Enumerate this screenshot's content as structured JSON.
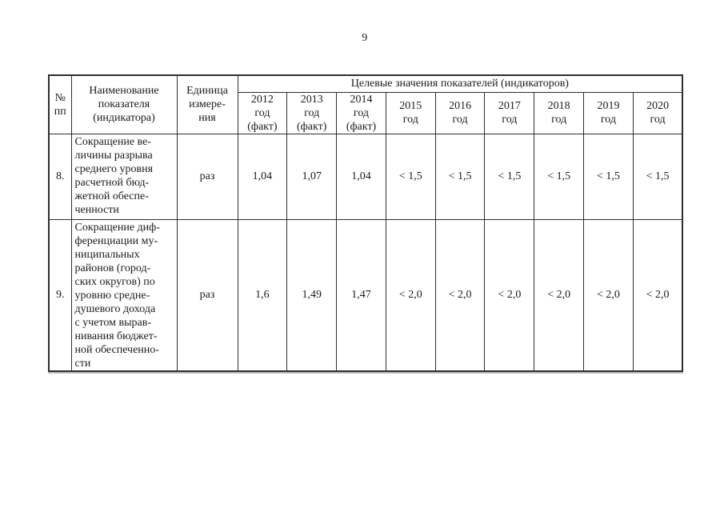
{
  "page": {
    "number": "9"
  },
  "colors": {
    "text": "#1b1b1b",
    "border": "#2e2e2e",
    "background": "#ffffff"
  },
  "table": {
    "header": {
      "col_no": "№\nпп",
      "col_name": "Наименование\nпоказателя\n(индикатора)",
      "col_unit": "Единица\nизмере-\nния",
      "span_title": "Целевые значения показателей (индикаторов)",
      "years": [
        "2012\nгод\n(факт)",
        "2013\nгод\n(факт)",
        "2014\nгод\n(факт)",
        "2015\nгод",
        "2016\nгод",
        "2017\nгод",
        "2018\nгод",
        "2019\nгод",
        "2020\nгод"
      ]
    },
    "rows": [
      {
        "no": "8.",
        "name": "Сокращение ве-\nличины разрыва\nсреднего уровня\nрасчетной бюд-\nжетной обеспе-\nченности",
        "unit": "раз",
        "values": [
          "1,04",
          "1,07",
          "1,04",
          "< 1,5",
          "< 1,5",
          "< 1,5",
          "< 1,5",
          "< 1,5",
          "< 1,5"
        ]
      },
      {
        "no": "9.",
        "name": "Сокращение диф-\nференциации му-\nниципальных\nрайонов (город-\nских округов) по\nуровню средне-\nдушевого дохода\nс учетом вырав-\nнивания бюджет-\nной обеспеченно-\nсти",
        "unit": "раз",
        "values": [
          "1,6",
          "1,49",
          "1,47",
          "< 2,0",
          "< 2,0",
          "< 2,0",
          "< 2,0",
          "< 2,0",
          "< 2,0"
        ]
      }
    ]
  }
}
